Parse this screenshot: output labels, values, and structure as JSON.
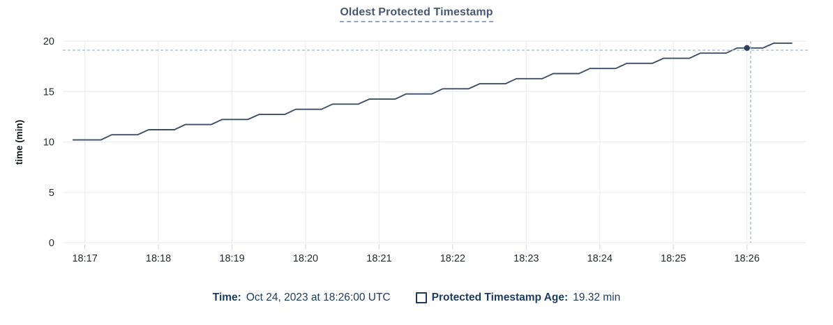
{
  "title": "Oldest Protected Timestamp",
  "colors": {
    "title": "#475872",
    "title_underline": "#93a5ba",
    "line": "#3e4e68",
    "dot": "#2e405e",
    "grid": "#efeff2",
    "tick_mark": "#d9dadd",
    "tick_text": "#242a33",
    "axis_title_text": "#15191f",
    "crosshair": "#a4b7c4",
    "legend_text": "#1b3a5f"
  },
  "legend": {
    "time_label": "Time:",
    "time_value": "Oct 24, 2023 at 18:26:00 UTC",
    "series_label": "Protected Timestamp Age:",
    "series_value": "19.32 min"
  },
  "chart_data": {
    "type": "line",
    "title": "Oldest Protected Timestamp",
    "xlabel": "",
    "ylabel": "time (min)",
    "ylim": [
      0,
      20
    ],
    "yticks": [
      0,
      5,
      10,
      15,
      20
    ],
    "grid": true,
    "legend_position": "bottom",
    "x_axis": {
      "t_unit": "seconds after 18:17:00 UTC on Oct 24, 2023",
      "domain_t": [
        -18,
        588
      ],
      "tick_t": [
        0,
        60,
        120,
        180,
        240,
        300,
        360,
        420,
        480,
        540
      ],
      "tick_labels": [
        "18:17",
        "18:18",
        "18:19",
        "18:20",
        "18:21",
        "18:22",
        "18:23",
        "18:24",
        "18:25",
        "18:26"
      ]
    },
    "series": [
      {
        "name": "Protected Timestamp Age",
        "unit": "min",
        "style": "staircase",
        "points": [
          [
            -10,
            10.2
          ],
          [
            13,
            10.2
          ],
          [
            22,
            10.71
          ],
          [
            43,
            10.71
          ],
          [
            52,
            11.21
          ],
          [
            73,
            11.21
          ],
          [
            82,
            11.72
          ],
          [
            103,
            11.72
          ],
          [
            112,
            12.23
          ],
          [
            133,
            12.23
          ],
          [
            142,
            12.73
          ],
          [
            163,
            12.73
          ],
          [
            172,
            13.24
          ],
          [
            193,
            13.24
          ],
          [
            202,
            13.75
          ],
          [
            223,
            13.75
          ],
          [
            232,
            14.25
          ],
          [
            253,
            14.25
          ],
          [
            262,
            14.76
          ],
          [
            283,
            14.76
          ],
          [
            292,
            15.27
          ],
          [
            313,
            15.27
          ],
          [
            322,
            15.77
          ],
          [
            343,
            15.77
          ],
          [
            352,
            16.28
          ],
          [
            373,
            16.28
          ],
          [
            382,
            16.78
          ],
          [
            403,
            16.78
          ],
          [
            412,
            17.29
          ],
          [
            433,
            17.29
          ],
          [
            442,
            17.8
          ],
          [
            463,
            17.8
          ],
          [
            472,
            18.3
          ],
          [
            493,
            18.3
          ],
          [
            502,
            18.81
          ],
          [
            523,
            18.81
          ],
          [
            532,
            19.32
          ],
          [
            553,
            19.32
          ],
          [
            562,
            19.8
          ],
          [
            577,
            19.8
          ]
        ]
      }
    ],
    "hover": {
      "time_label": "Oct 24, 2023 at 18:26:00 UTC",
      "snap_point": {
        "t": 540,
        "value": 19.32
      },
      "cursor": {
        "t": 543,
        "value": 19.1
      }
    }
  }
}
